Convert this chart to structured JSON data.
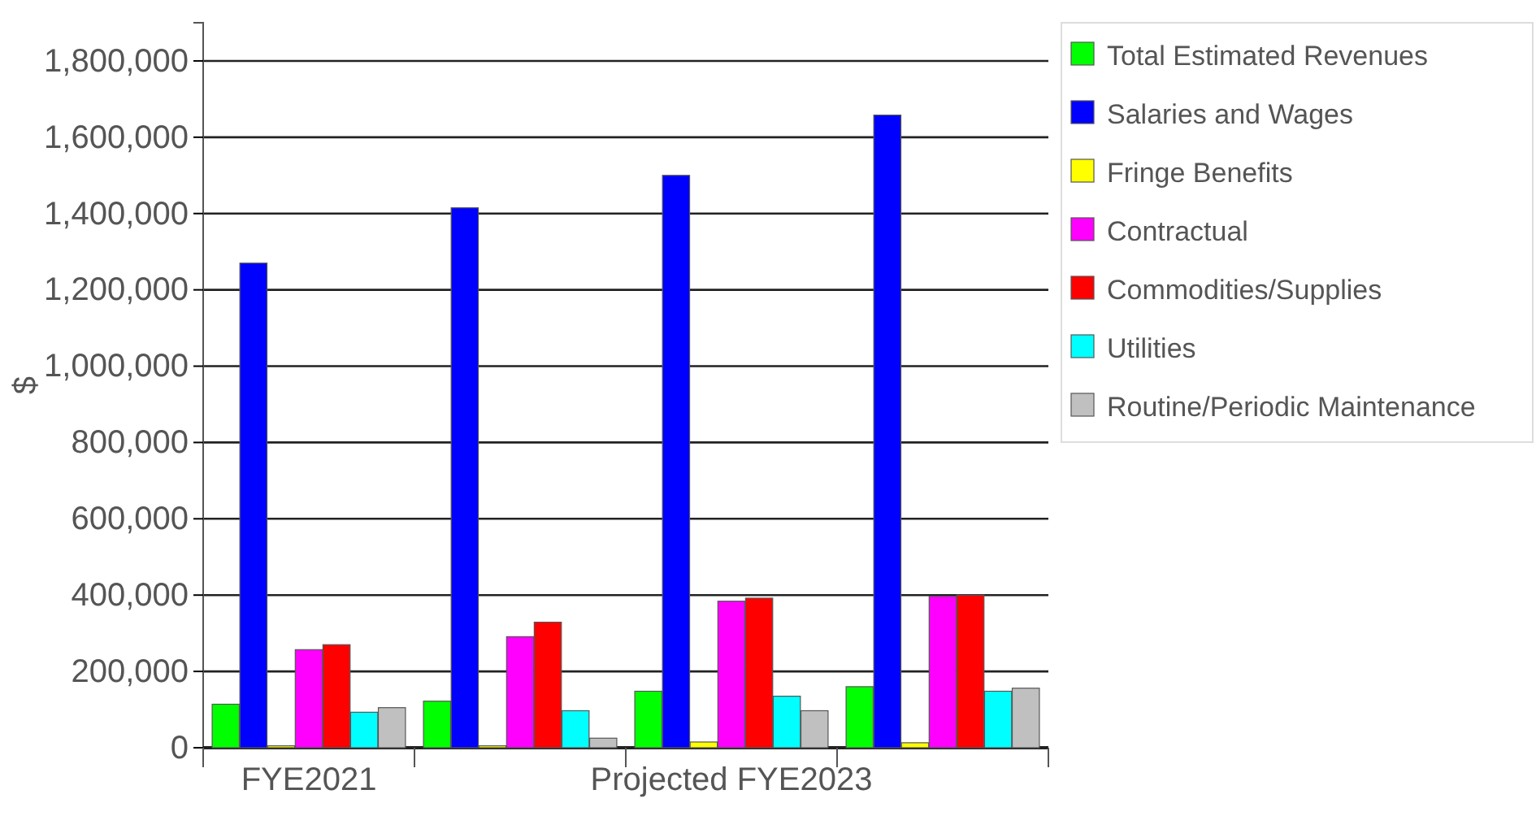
{
  "chart_data": {
    "type": "bar",
    "ylabel": "$",
    "categories": [
      "FYE2021",
      null,
      "Projected FYE2023",
      null
    ],
    "series": [
      {
        "name": "Total Estimated Revenues",
        "color": "#00ff00",
        "values": [
          114000,
          122000,
          148000,
          160000
        ]
      },
      {
        "name": "Salaries and Wages",
        "color": "#0000ff",
        "values": [
          1270000,
          1415000,
          1500000,
          1658000
        ]
      },
      {
        "name": "Fringe Benefits",
        "color": "#ffff00",
        "values": [
          5000,
          5000,
          15000,
          13000
        ]
      },
      {
        "name": "Contractual",
        "color": "#ff00ff",
        "values": [
          257000,
          291000,
          384000,
          397000
        ]
      },
      {
        "name": "Commodities/Supplies",
        "color": "#ff0000",
        "values": [
          270000,
          329000,
          392000,
          400000
        ]
      },
      {
        "name": "Utilities",
        "color": "#00ffff",
        "values": [
          93000,
          97000,
          135000,
          148000
        ]
      },
      {
        "name": "Routine/Periodic Maintenance",
        "color": "#c0c0c0",
        "values": [
          105000,
          25000,
          97000,
          156000
        ]
      }
    ],
    "ylim": [
      0,
      1900000
    ],
    "yticks": [
      {
        "value": 0,
        "label": "0"
      },
      {
        "value": 200000,
        "label": "200,000"
      },
      {
        "value": 400000,
        "label": "400,000"
      },
      {
        "value": 600000,
        "label": "600,000"
      },
      {
        "value": 800000,
        "label": "800,000"
      },
      {
        "value": 1000000,
        "label": "1,000,000"
      },
      {
        "value": 1200000,
        "label": "1,200,000"
      },
      {
        "value": 1400000,
        "label": "1,400,000"
      },
      {
        "value": 1600000,
        "label": "1,600,000"
      },
      {
        "value": 1800000,
        "label": "1,800,000"
      }
    ],
    "grid": "y",
    "legend": "top right"
  }
}
